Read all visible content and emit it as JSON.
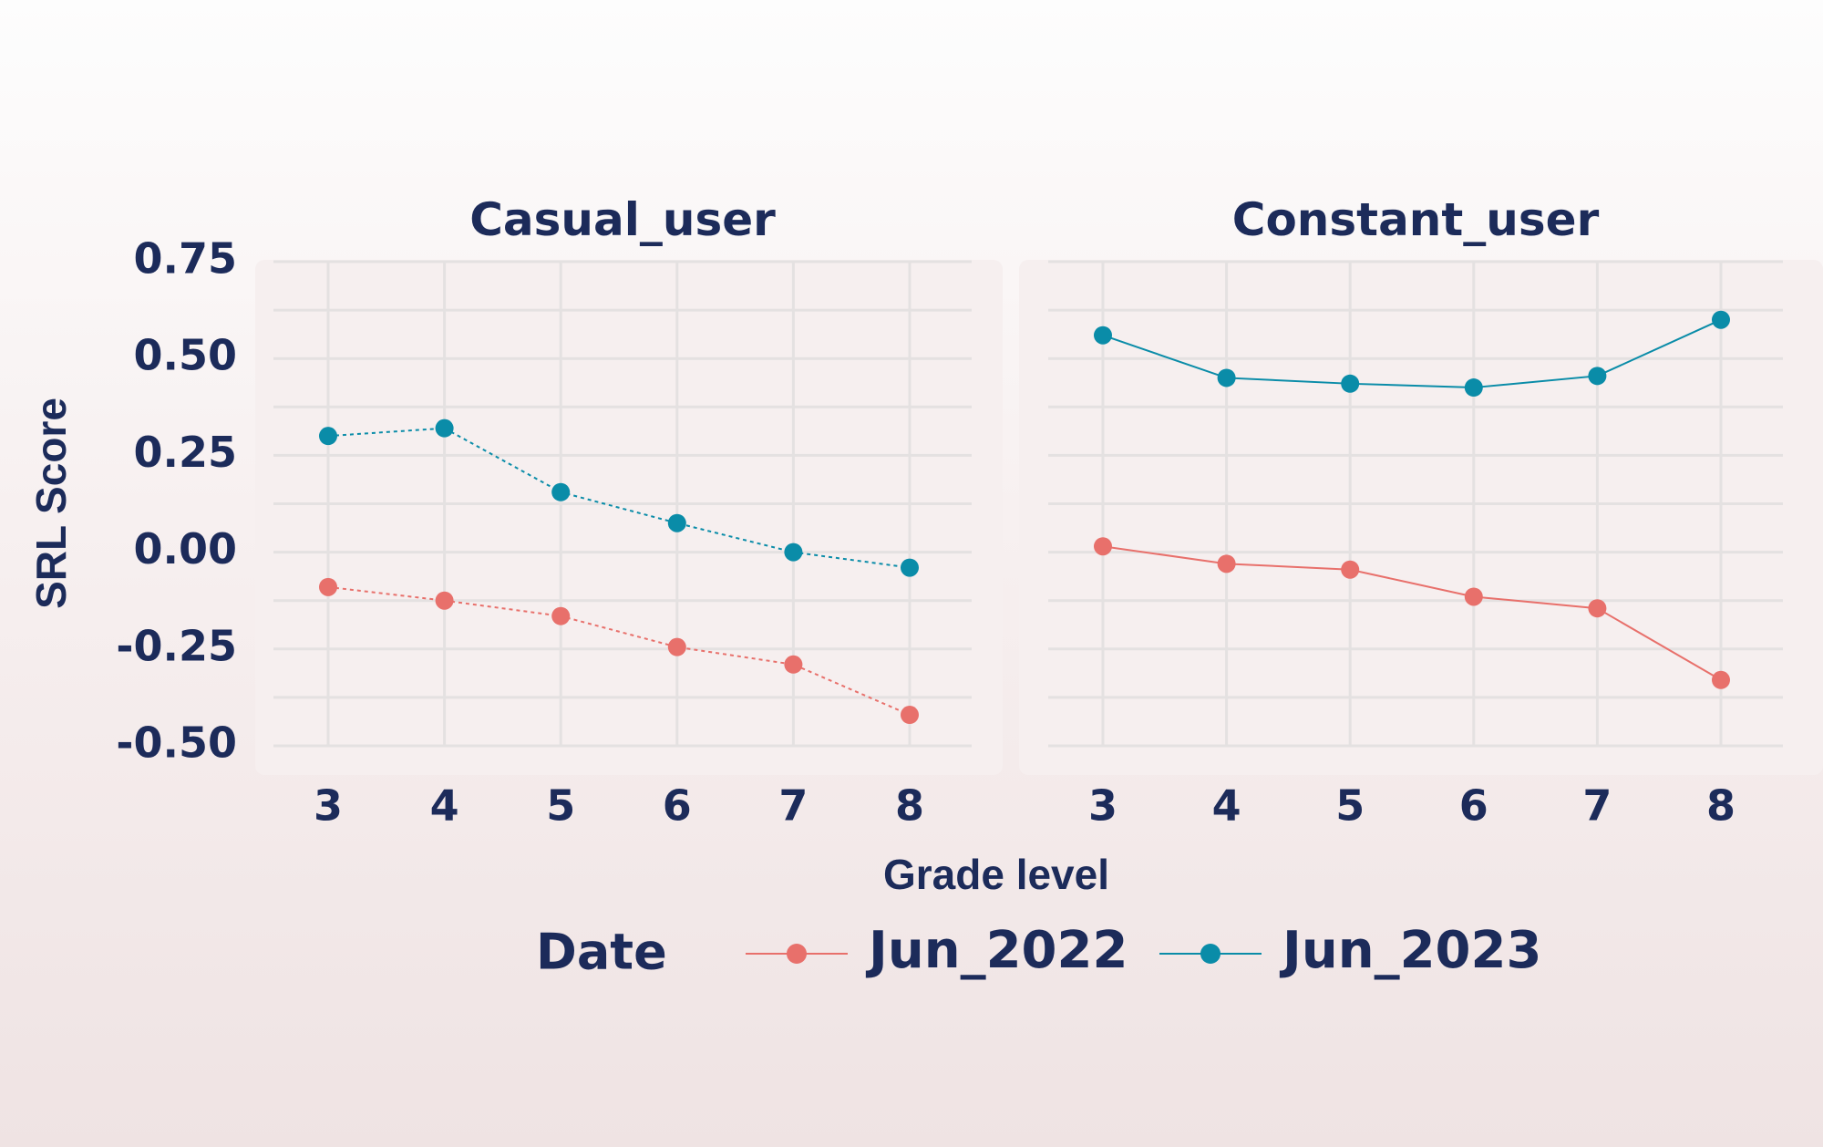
{
  "chart_data": {
    "type": "line",
    "x": [
      3,
      4,
      5,
      6,
      7,
      8
    ],
    "x_ticks": [
      "3",
      "4",
      "5",
      "6",
      "7",
      "8"
    ],
    "ylim": [
      -0.5,
      0.75
    ],
    "y_ticks": [
      "0.75",
      "0.50",
      "0.25",
      "0.00",
      "-0.25",
      "-0.50"
    ],
    "y_tick_values": [
      0.75,
      0.5,
      0.25,
      0.0,
      -0.25,
      -0.5
    ],
    "xlabel": "Grade level",
    "ylabel": "SRL Score",
    "legend": {
      "title": "Date",
      "position": "bottom",
      "entries": [
        "Jun_2022",
        "Jun_2023"
      ]
    },
    "colors": {
      "Jun_2022": "#e8706b",
      "Jun_2023": "#0a8ca8"
    },
    "panels": [
      {
        "title": "Casual_user",
        "line_style": "dotted",
        "series": [
          {
            "name": "Jun_2022",
            "values": [
              -0.09,
              -0.125,
              -0.165,
              -0.245,
              -0.29,
              -0.42
            ]
          },
          {
            "name": "Jun_2023",
            "values": [
              0.3,
              0.32,
              0.155,
              0.075,
              0.0,
              -0.04
            ]
          }
        ]
      },
      {
        "title": "Constant_user",
        "line_style": "solid",
        "series": [
          {
            "name": "Jun_2022",
            "values": [
              0.015,
              -0.03,
              -0.045,
              -0.115,
              -0.145,
              -0.33
            ]
          },
          {
            "name": "Jun_2023",
            "values": [
              0.56,
              0.45,
              0.435,
              0.425,
              0.455,
              0.6
            ]
          }
        ]
      }
    ]
  }
}
